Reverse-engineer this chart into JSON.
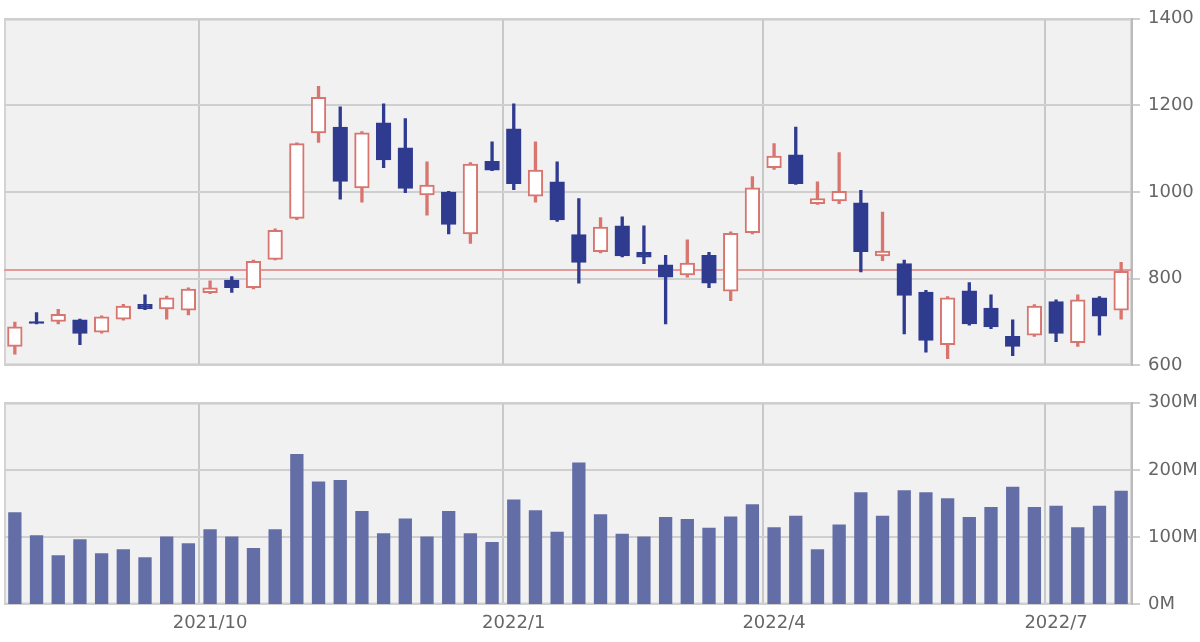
{
  "chart_data": [
    {
      "type": "candlestick",
      "categories": [
        null,
        null,
        null,
        null,
        null,
        null,
        null,
        null,
        null,
        "2021/10",
        null,
        null,
        null,
        null,
        null,
        null,
        null,
        null,
        null,
        null,
        null,
        null,
        null,
        "2022/1",
        null,
        null,
        null,
        null,
        null,
        null,
        null,
        null,
        null,
        null,
        null,
        "2022/4",
        null,
        null,
        null,
        null,
        null,
        null,
        null,
        null,
        null,
        null,
        null,
        null,
        "2022/7",
        null,
        null,
        null
      ],
      "ohlc": [
        [
          644,
          699,
          626,
          688
        ],
        [
          700,
          721,
          696,
          697
        ],
        [
          702,
          728,
          696,
          717
        ],
        [
          704,
          706,
          648,
          674
        ],
        [
          677,
          713,
          675,
          711
        ],
        [
          707,
          740,
          705,
          736
        ],
        [
          740,
          762,
          729,
          731
        ],
        [
          731,
          759,
          707,
          755
        ],
        [
          728,
          778,
          717,
          775
        ],
        [
          768,
          794,
          766,
          778
        ],
        [
          796,
          804,
          769,
          780
        ],
        [
          780,
          842,
          777,
          839
        ],
        [
          845,
          914,
          844,
          911
        ],
        [
          940,
          1113,
          937,
          1111
        ],
        [
          1137,
          1243,
          1115,
          1218
        ],
        [
          1149,
          1196,
          984,
          1025
        ],
        [
          1010,
          1139,
          977,
          1136
        ],
        [
          1159,
          1203,
          1057,
          1075
        ],
        [
          1101,
          1169,
          999,
          1009
        ],
        [
          994,
          1069,
          947,
          1015
        ],
        [
          999,
          1001,
          904,
          926
        ],
        [
          904,
          1067,
          882,
          1064
        ],
        [
          1070,
          1115,
          1050,
          1051
        ],
        [
          1145,
          1203,
          1006,
          1020
        ],
        [
          991,
          1115,
          977,
          1050
        ],
        [
          1023,
          1069,
          933,
          936
        ],
        [
          901,
          984,
          790,
          838
        ],
        [
          863,
          940,
          860,
          918
        ],
        [
          921,
          942,
          851,
          853
        ],
        [
          860,
          921,
          835,
          850
        ],
        [
          831,
          853,
          696,
          804
        ],
        [
          809,
          889,
          804,
          835
        ],
        [
          853,
          860,
          780,
          790
        ],
        [
          772,
          907,
          750,
          904
        ],
        [
          907,
          1035,
          904,
          1009
        ],
        [
          1057,
          1111,
          1053,
          1082
        ],
        [
          1085,
          1149,
          1018,
          1020
        ],
        [
          974,
          1023,
          972,
          984
        ],
        [
          980,
          1090,
          974,
          1001
        ],
        [
          974,
          1003,
          816,
          863
        ],
        [
          853,
          953,
          842,
          863
        ],
        [
          834,
          842,
          673,
          762
        ],
        [
          768,
          772,
          631,
          658
        ],
        [
          648,
          758,
          616,
          755
        ],
        [
          771,
          790,
          693,
          696
        ],
        [
          731,
          762,
          685,
          689
        ],
        [
          666,
          704,
          623,
          644
        ],
        [
          670,
          739,
          667,
          736
        ],
        [
          746,
          750,
          655,
          674
        ],
        [
          653,
          762,
          644,
          750
        ],
        [
          755,
          758,
          670,
          714
        ],
        [
          728,
          837,
          707,
          816
        ]
      ],
      "colors": [
        "#d9756f",
        "#2e3b8f",
        "#d9756f",
        "#2e3b8f",
        "#d9756f",
        "#d9756f",
        "#2e3b8f",
        "#d9756f",
        "#d9756f",
        "#d9756f",
        "#2e3b8f",
        "#d9756f",
        "#d9756f",
        "#d9756f",
        "#d9756f",
        "#2e3b8f",
        "#d9756f",
        "#2e3b8f",
        "#2e3b8f",
        "#d9756f",
        "#2e3b8f",
        "#d9756f",
        "#2e3b8f",
        "#2e3b8f",
        "#d9756f",
        "#2e3b8f",
        "#2e3b8f",
        "#d9756f",
        "#2e3b8f",
        "#2e3b8f",
        "#2e3b8f",
        "#d9756f",
        "#2e3b8f",
        "#d9756f",
        "#d9756f",
        "#d9756f",
        "#2e3b8f",
        "#d9756f",
        "#d9756f",
        "#2e3b8f",
        "#d9756f",
        "#2e3b8f",
        "#2e3b8f",
        "#d9756f",
        "#2e3b8f",
        "#2e3b8f",
        "#2e3b8f",
        "#d9756f",
        "#2e3b8f",
        "#d9756f",
        "#2e3b8f",
        "#d9756f"
      ],
      "ylim": [
        600,
        1400
      ],
      "yticks": [
        600,
        800,
        1000,
        1200,
        1400
      ],
      "grid": true,
      "tick_labels": "y",
      "ref_lines": [
        {
          "axis": "y",
          "value": 820,
          "color": "#e59a9a"
        }
      ]
    },
    {
      "type": "bar",
      "categories": [
        null,
        null,
        null,
        null,
        null,
        null,
        null,
        null,
        null,
        "2021/10",
        null,
        null,
        null,
        null,
        null,
        null,
        null,
        null,
        null,
        null,
        null,
        null,
        null,
        "2022/1",
        null,
        null,
        null,
        null,
        null,
        null,
        null,
        null,
        null,
        null,
        null,
        "2022/4",
        null,
        null,
        null,
        null,
        null,
        null,
        null,
        null,
        null,
        null,
        null,
        null,
        "2022/7",
        null,
        null,
        null
      ],
      "values": [
        136,
        102,
        72,
        96,
        75,
        81,
        69,
        100,
        90,
        111,
        100,
        83,
        111,
        223,
        182,
        184,
        138,
        105,
        127,
        100,
        138,
        105,
        92,
        155,
        139,
        107,
        210,
        133,
        104,
        100,
        129,
        126,
        113,
        130,
        148,
        114,
        131,
        81,
        118,
        166,
        131,
        169,
        166,
        157,
        129,
        144,
        174,
        144,
        146,
        114,
        146,
        168
      ],
      "color": "#646ea6",
      "ylim": [
        0,
        300
      ],
      "yticks": [
        {
          "value": 0,
          "label": "0M"
        },
        {
          "value": 100,
          "label": "100M"
        },
        {
          "value": 200,
          "label": "200M"
        },
        {
          "value": 300,
          "label": "300M"
        }
      ],
      "grid": true
    }
  ]
}
